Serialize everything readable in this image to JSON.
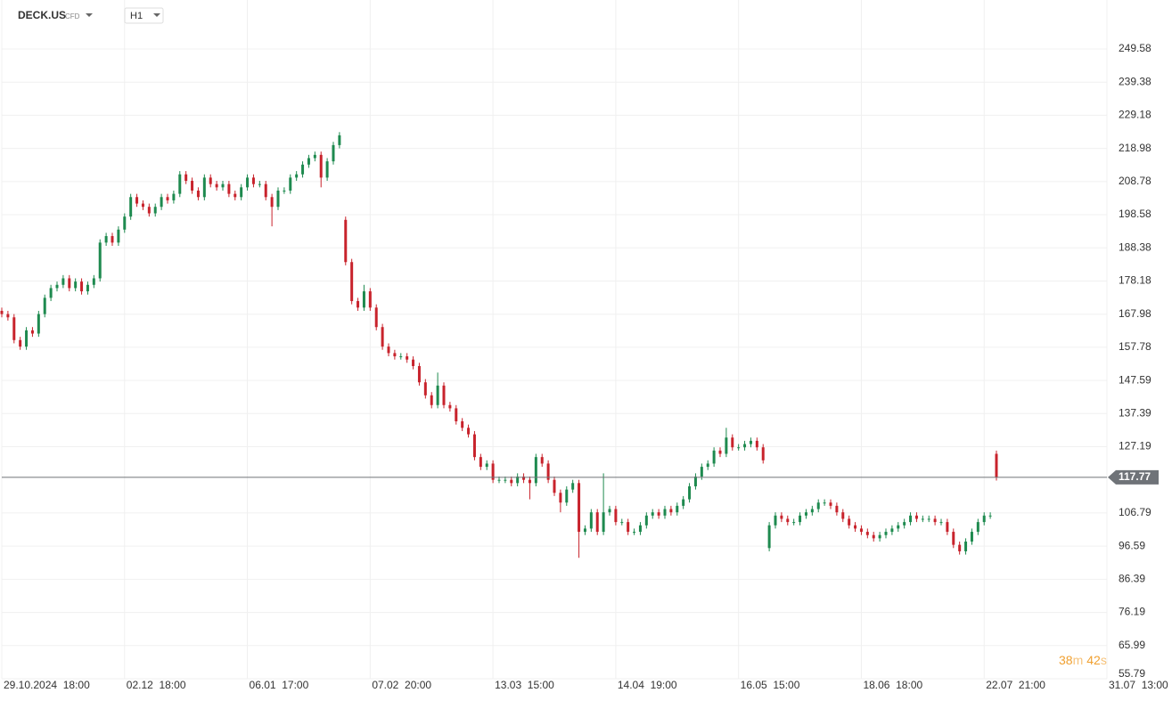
{
  "toolbar": {
    "symbol": "DECK.US",
    "instrument_type": "CFD",
    "timeframe": "H1"
  },
  "countdown": {
    "minutes": "38",
    "minutes_unit": "m",
    "seconds": "42",
    "seconds_unit": "s"
  },
  "chart_data": {
    "type": "candlestick",
    "x": [
      0,
      1,
      2,
      3,
      4,
      5,
      6,
      7,
      8,
      9,
      10,
      11,
      12,
      13,
      14,
      15,
      16,
      17,
      18,
      19,
      20,
      21,
      22,
      23,
      24,
      25,
      26,
      27,
      28,
      29,
      30,
      31,
      32,
      33,
      34,
      35,
      36,
      37,
      38,
      39,
      40,
      41,
      42,
      43,
      44,
      45,
      46,
      47,
      48,
      49,
      50,
      51,
      52,
      53,
      54,
      55,
      56,
      57,
      58,
      59,
      60,
      61,
      62,
      63,
      64,
      65,
      66,
      67,
      68,
      69,
      70,
      71,
      72,
      73,
      74,
      75,
      76,
      77,
      78,
      79,
      80,
      81,
      82,
      83,
      84,
      85,
      86,
      87,
      88,
      89,
      90,
      91,
      92,
      93,
      94,
      95,
      96,
      97,
      98,
      99,
      100,
      101,
      102,
      103,
      104,
      105,
      106,
      107,
      108,
      109,
      110,
      111,
      112,
      113,
      114,
      115,
      116,
      117,
      118,
      119,
      120,
      121,
      122,
      123,
      124,
      125,
      126,
      127,
      128,
      129,
      130,
      131,
      132,
      133,
      134,
      135,
      136,
      137,
      138,
      139,
      140,
      141,
      142,
      143,
      144,
      145,
      146,
      147,
      148,
      149,
      150,
      151,
      152,
      153,
      154,
      155,
      156,
      157,
      158,
      159,
      160,
      161,
      162
    ],
    "open": [
      169,
      168,
      167,
      160,
      158,
      163,
      162,
      168,
      173,
      176,
      177,
      179,
      176,
      178,
      175,
      177,
      179,
      190,
      192,
      190,
      194,
      198,
      204,
      202,
      201,
      199,
      201,
      204,
      203,
      205,
      211,
      209,
      206,
      204,
      210,
      208,
      207,
      208,
      205,
      204,
      207,
      210,
      208,
      208,
      204,
      201,
      206,
      206,
      210,
      211,
      214,
      216,
      217,
      210,
      215,
      220,
      197,
      184,
      172,
      170,
      175,
      170,
      164,
      158,
      156,
      155,
      155,
      154,
      152,
      147,
      143,
      140,
      146,
      140,
      139,
      135,
      133,
      131,
      124,
      121,
      122,
      117,
      117,
      117,
      116,
      118,
      117,
      116,
      124,
      122,
      117,
      113,
      110,
      114,
      116,
      101,
      102,
      107,
      101,
      107,
      108,
      104,
      104,
      101,
      101,
      103,
      106,
      107,
      106,
      108,
      107,
      109,
      111,
      115,
      118,
      121,
      122,
      126,
      125,
      130,
      127,
      127,
      128,
      129,
      127,
      96,
      103,
      106,
      105,
      104,
      104,
      106,
      107,
      108,
      110,
      110,
      109,
      107,
      105,
      103,
      102,
      101,
      100,
      99,
      100,
      101,
      102,
      103,
      104,
      106,
      105,
      105,
      105,
      104,
      104,
      101,
      97,
      95,
      98,
      101,
      104,
      106,
      125
    ],
    "high": [
      170,
      169,
      168,
      161,
      164,
      164,
      169,
      174,
      177,
      178,
      180,
      180,
      179,
      179,
      178,
      180,
      191,
      193,
      193,
      195,
      199,
      205,
      205,
      203,
      202,
      202,
      205,
      205,
      206,
      212,
      212,
      210,
      207,
      211,
      211,
      209,
      209,
      209,
      206,
      208,
      211,
      211,
      209,
      209,
      205,
      207,
      207,
      211,
      212,
      215,
      217,
      218,
      218,
      216,
      221,
      224,
      198,
      185,
      173,
      177,
      176,
      171,
      165,
      159,
      157,
      156,
      156,
      155,
      153,
      148,
      144,
      150,
      147,
      141,
      140,
      136,
      134,
      132,
      125,
      123,
      123,
      118,
      118,
      118,
      119,
      119,
      118,
      125,
      125,
      123,
      118,
      114,
      115,
      117,
      117,
      103,
      108,
      108,
      119,
      109,
      109,
      105,
      105,
      102,
      104,
      107,
      108,
      108,
      109,
      109,
      110,
      112,
      116,
      119,
      122,
      123,
      127,
      127,
      133,
      131,
      128,
      129,
      130,
      130,
      128,
      104,
      107,
      107,
      106,
      105,
      107,
      108,
      109,
      111,
      111,
      111,
      110,
      108,
      106,
      104,
      103,
      102,
      101,
      101,
      102,
      103,
      104,
      105,
      107,
      107,
      106,
      106,
      106,
      105,
      105,
      102,
      98,
      99,
      102,
      105,
      107,
      107,
      126
    ],
    "low": [
      167,
      166,
      159,
      157,
      157,
      161,
      161,
      167,
      172,
      175,
      176,
      175,
      175,
      174,
      174,
      176,
      178,
      189,
      189,
      189,
      193,
      197,
      201,
      200,
      198,
      198,
      200,
      202,
      202,
      204,
      208,
      205,
      203,
      203,
      207,
      206,
      206,
      204,
      203,
      203,
      206,
      207,
      207,
      203,
      195,
      200,
      205,
      205,
      209,
      210,
      213,
      215,
      207,
      209,
      214,
      219,
      183,
      171,
      169,
      169,
      169,
      163,
      157,
      155,
      154,
      154,
      153,
      151,
      146,
      142,
      139,
      139,
      139,
      138,
      134,
      132,
      130,
      123,
      120,
      120,
      116,
      116,
      116,
      115,
      115,
      116,
      111,
      115,
      121,
      116,
      112,
      107,
      109,
      113,
      93,
      100,
      101,
      100,
      100,
      106,
      103,
      103,
      100,
      100,
      100,
      102,
      105,
      105,
      105,
      106,
      106,
      108,
      110,
      114,
      117,
      120,
      121,
      124,
      124,
      126,
      126,
      126,
      127,
      126,
      122,
      95,
      102,
      104,
      103,
      103,
      103,
      105,
      106,
      107,
      109,
      108,
      106,
      104,
      102,
      101,
      100,
      99,
      98,
      98,
      99,
      100,
      101,
      102,
      103,
      104,
      104,
      104,
      103,
      103,
      100,
      96,
      94,
      94,
      97,
      100,
      103,
      105,
      116.77
    ],
    "close": [
      168,
      167,
      160,
      158,
      163,
      162,
      168,
      173,
      176,
      177,
      179,
      176,
      178,
      175,
      177,
      179,
      190,
      192,
      190,
      194,
      198,
      204,
      202,
      201,
      199,
      201,
      204,
      203,
      205,
      211,
      209,
      206,
      204,
      210,
      208,
      207,
      208,
      205,
      204,
      207,
      210,
      208,
      208,
      204,
      201,
      206,
      206,
      210,
      211,
      214,
      216,
      217,
      210,
      215,
      220,
      223,
      184,
      172,
      170,
      175,
      170,
      164,
      158,
      156,
      155,
      155,
      154,
      152,
      147,
      143,
      140,
      146,
      140,
      139,
      135,
      133,
      131,
      124,
      121,
      122,
      117,
      117,
      117,
      116,
      118,
      117,
      116,
      124,
      122,
      117,
      113,
      110,
      114,
      116,
      101,
      102,
      107,
      101,
      107,
      108,
      104,
      104,
      101,
      101,
      103,
      106,
      107,
      106,
      108,
      107,
      109,
      111,
      115,
      118,
      121,
      122,
      126,
      125,
      130,
      127,
      127,
      128,
      129,
      127,
      123,
      103,
      106,
      105,
      104,
      104,
      106,
      107,
      108,
      110,
      110,
      109,
      107,
      105,
      103,
      102,
      101,
      100,
      99,
      100,
      101,
      102,
      103,
      104,
      106,
      105,
      105,
      105,
      104,
      104,
      101,
      97,
      95,
      98,
      101,
      104,
      106,
      106,
      117.77
    ],
    "up_color": "#1e8a4f",
    "down_color": "#c8232c",
    "last_price_color": "#6f7378",
    "xlim": [
      0,
      180
    ],
    "xticks": [
      {
        "value": 0,
        "label": "29.10.2024  18:00"
      },
      {
        "value": 20,
        "label": "02.12  18:00"
      },
      {
        "value": 40,
        "label": "06.01  17:00"
      },
      {
        "value": 60,
        "label": "07.02  20:00"
      },
      {
        "value": 80,
        "label": "13.03  15:00"
      },
      {
        "value": 100,
        "label": "14.04  19:00"
      },
      {
        "value": 120,
        "label": "16.05  15:00"
      },
      {
        "value": 140,
        "label": "18.06  18:00"
      },
      {
        "value": 160,
        "label": "22.07  21:00"
      },
      {
        "value": 180,
        "label": "31.07  13:00"
      }
    ],
    "ylim": [
      55.79,
      264.65
    ],
    "yticks": [
      249.58,
      239.38,
      229.18,
      218.98,
      208.78,
      198.58,
      188.38,
      178.18,
      167.98,
      157.78,
      147.59,
      137.39,
      127.19,
      106.79,
      96.59,
      86.39,
      76.19,
      65.99,
      55.79
    ],
    "grid": true
  }
}
